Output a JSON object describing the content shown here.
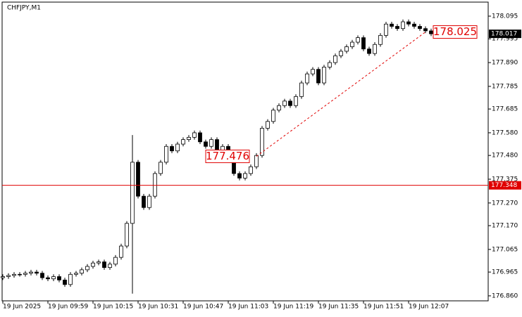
{
  "chart_data": {
    "type": "candlestick",
    "title": "CHFJPY,M1",
    "categories": [
      "19 Jun 2025",
      null,
      null,
      null,
      null,
      null,
      null,
      null,
      "19 Jun 09:59",
      null,
      null,
      null,
      null,
      null,
      null,
      null,
      "19 Jun 10:15",
      null,
      null,
      null,
      null,
      null,
      null,
      null,
      "19 Jun 10:31",
      null,
      null,
      null,
      null,
      null,
      null,
      null,
      "19 Jun 10:47",
      null,
      null,
      null,
      null,
      null,
      null,
      null,
      "19 Jun 11:03",
      null,
      null,
      null,
      null,
      null,
      null,
      null,
      "19 Jun 11:19",
      null,
      null,
      null,
      null,
      null,
      null,
      null,
      "19 Jun 11:35",
      null,
      null,
      null,
      null,
      null,
      null,
      null,
      "19 Jun 11:51",
      null,
      null,
      null,
      null,
      null,
      null,
      null,
      "19 Jun 12:07",
      null,
      null,
      null,
      null
    ],
    "open": [
      176.94,
      176.945,
      176.95,
      176.955,
      176.955,
      176.96,
      176.965,
      176.96,
      176.94,
      176.935,
      176.945,
      176.93,
      176.91,
      176.955,
      176.96,
      176.975,
      176.99,
      177.005,
      177.01,
      176.985,
      177.0,
      177.03,
      177.08,
      177.18,
      177.45,
      177.3,
      177.25,
      177.3,
      177.4,
      177.45,
      177.52,
      177.5,
      177.53,
      177.55,
      177.56,
      177.58,
      177.54,
      177.52,
      177.55,
      177.5,
      177.52,
      177.46,
      177.4,
      177.38,
      177.4,
      177.43,
      177.48,
      177.6,
      177.63,
      177.68,
      177.7,
      177.72,
      177.7,
      177.74,
      177.8,
      177.84,
      177.86,
      177.8,
      177.87,
      177.89,
      177.92,
      177.94,
      177.96,
      177.98,
      178.0,
      177.95,
      177.93,
      177.97,
      178.01,
      178.06,
      178.05,
      178.04,
      178.07,
      178.06,
      178.05,
      178.04,
      178.03
    ],
    "high": [
      176.955,
      176.96,
      176.965,
      176.965,
      176.97,
      176.975,
      176.975,
      176.97,
      176.95,
      176.955,
      176.955,
      176.94,
      176.965,
      176.97,
      176.985,
      177.0,
      177.015,
      177.02,
      177.02,
      177.01,
      177.04,
      177.09,
      177.19,
      177.57,
      177.46,
      177.31,
      177.31,
      177.41,
      177.46,
      177.53,
      177.53,
      177.54,
      177.56,
      177.57,
      177.59,
      177.59,
      177.55,
      177.56,
      177.56,
      177.53,
      177.53,
      177.47,
      177.41,
      177.41,
      177.44,
      177.49,
      177.61,
      177.64,
      177.69,
      177.71,
      177.73,
      177.73,
      177.75,
      177.81,
      177.85,
      177.87,
      177.87,
      177.88,
      177.9,
      177.93,
      177.95,
      177.97,
      177.99,
      178.01,
      178.01,
      177.96,
      177.98,
      178.02,
      178.07,
      178.07,
      178.06,
      178.08,
      178.08,
      178.07,
      178.06,
      178.05,
      178.04
    ],
    "low": [
      176.93,
      176.935,
      176.94,
      176.945,
      176.945,
      176.95,
      176.95,
      176.93,
      176.925,
      176.925,
      176.92,
      176.9,
      176.9,
      176.945,
      176.95,
      176.965,
      176.98,
      176.995,
      176.975,
      176.975,
      176.99,
      177.02,
      177.07,
      176.87,
      177.29,
      177.24,
      177.24,
      177.29,
      177.39,
      177.44,
      177.49,
      177.49,
      177.52,
      177.54,
      177.55,
      177.53,
      177.51,
      177.51,
      177.49,
      177.49,
      177.45,
      177.39,
      177.37,
      177.37,
      177.39,
      177.42,
      177.47,
      177.59,
      177.62,
      177.67,
      177.69,
      177.69,
      177.69,
      177.73,
      177.79,
      177.83,
      177.79,
      177.79,
      177.86,
      177.88,
      177.91,
      177.93,
      177.95,
      177.97,
      177.94,
      177.92,
      177.92,
      177.96,
      178.0,
      178.04,
      178.03,
      178.03,
      178.05,
      178.04,
      178.03,
      178.02,
      178.007
    ],
    "close": [
      176.945,
      176.95,
      176.955,
      176.955,
      176.96,
      176.965,
      176.96,
      176.94,
      176.935,
      176.945,
      176.93,
      176.91,
      176.955,
      176.96,
      176.975,
      176.99,
      177.005,
      177.01,
      176.985,
      177.0,
      177.03,
      177.08,
      177.18,
      177.45,
      177.3,
      177.25,
      177.3,
      177.4,
      177.45,
      177.52,
      177.5,
      177.53,
      177.55,
      177.56,
      177.58,
      177.54,
      177.52,
      177.55,
      177.5,
      177.52,
      177.46,
      177.4,
      177.38,
      177.4,
      177.43,
      177.48,
      177.6,
      177.63,
      177.68,
      177.7,
      177.72,
      177.7,
      177.74,
      177.8,
      177.84,
      177.86,
      177.8,
      177.87,
      177.89,
      177.92,
      177.94,
      177.96,
      177.98,
      178.0,
      177.95,
      177.93,
      177.97,
      178.01,
      178.06,
      178.05,
      178.04,
      178.07,
      178.06,
      178.05,
      178.04,
      178.03,
      178.017
    ],
    "ylim": [
      176.838,
      178.157
    ],
    "yticks": [
      178.095,
      177.995,
      {
        "value": 177.89,
        "label": "177.890"
      },
      177.785,
      177.685,
      {
        "value": 177.58,
        "label": "177.580"
      },
      {
        "value": 177.48,
        "label": "177.480"
      },
      177.375,
      {
        "value": 177.27,
        "label": "177.270"
      },
      {
        "value": 177.17,
        "label": "177.170"
      },
      177.065,
      176.965,
      {
        "value": 176.86,
        "label": "176.860"
      }
    ],
    "last_price": 178.017,
    "hline": {
      "value": 177.348,
      "color": "#e00000"
    },
    "trendline": {
      "start_index": 45,
      "start": 177.476,
      "end_index": 75,
      "end": 178.025,
      "color": "#e00000"
    }
  }
}
